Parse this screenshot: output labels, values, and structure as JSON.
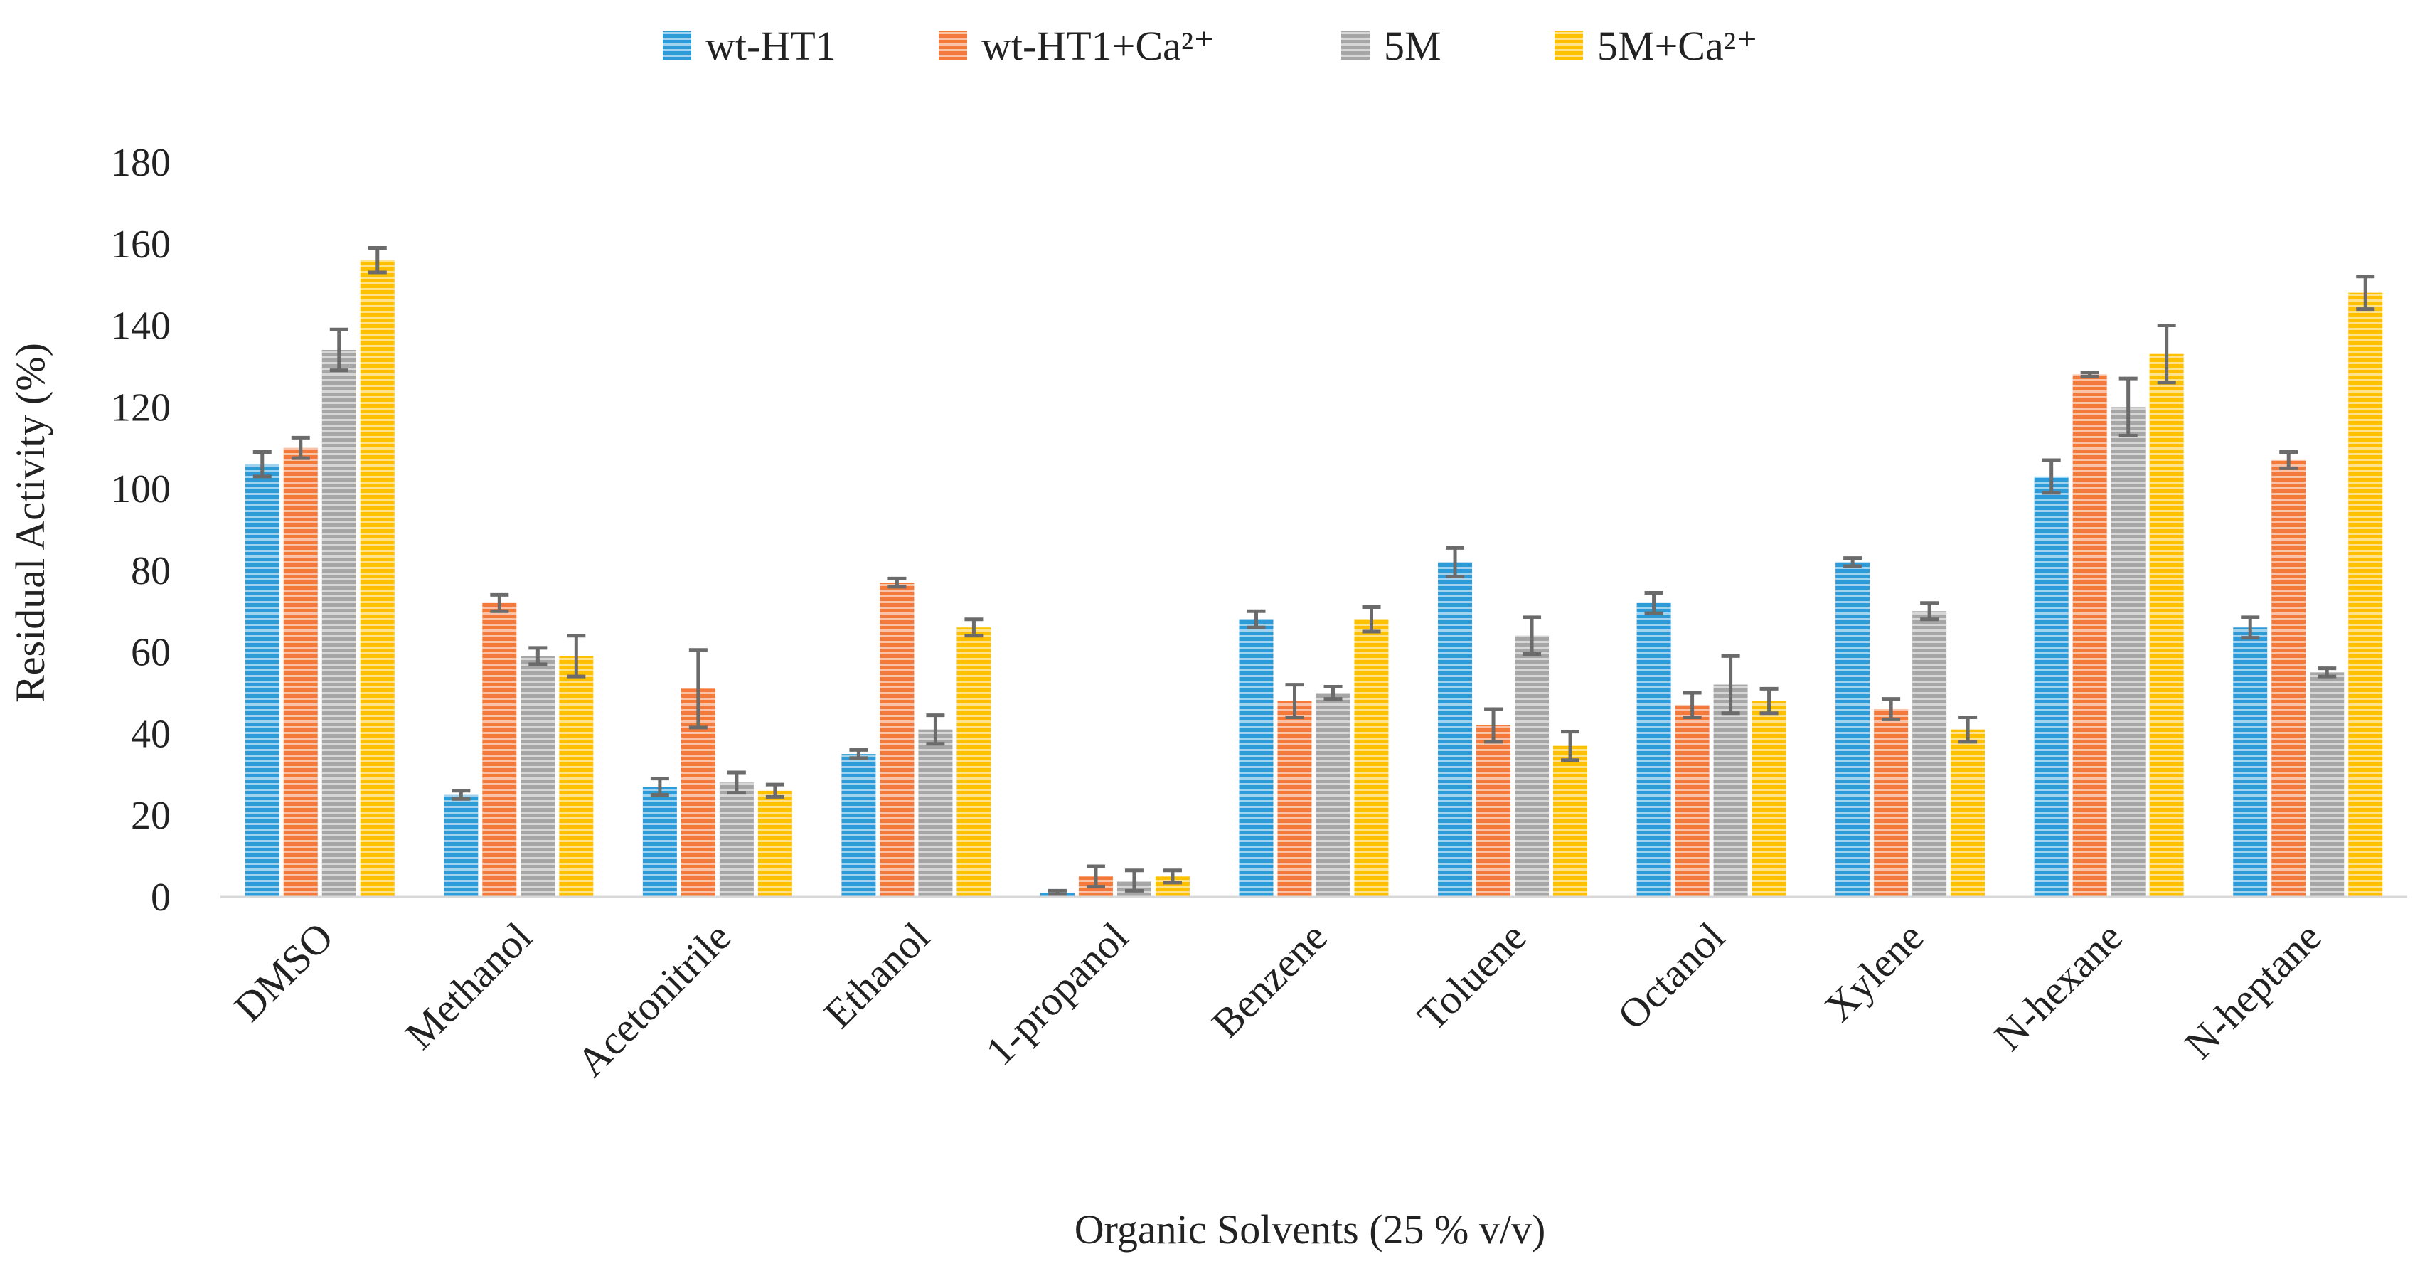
{
  "chart_data": {
    "type": "bar",
    "xlabel": "Organic Solvents (25 % v/v)",
    "ylabel": "Residual Activity (%)",
    "ylim": [
      0,
      180
    ],
    "yticks": [
      "0",
      "20",
      "40",
      "60",
      "80",
      "100",
      "120",
      "140",
      "160",
      "180"
    ],
    "grid": false,
    "legend_position": "top",
    "error_bars": true,
    "categories": [
      "DMSO",
      "Methanol",
      "Acetonitrile",
      "Ethanol",
      "1-propanol",
      "Benzene",
      "Toluene",
      "Octanol",
      "Xylene",
      "N-hexane",
      "N-heptane"
    ],
    "series": [
      {
        "name": "wt-HT1",
        "color": "#2e9bd9",
        "values": [
          106,
          25,
          27,
          35,
          1,
          68,
          82,
          72,
          82,
          103,
          66
        ],
        "errors": [
          3,
          1,
          2,
          1,
          0.5,
          2,
          3.5,
          2.5,
          1,
          4,
          2.5
        ]
      },
      {
        "name": "wt-HT1+Ca²⁺",
        "color": "#f47a3b",
        "values": [
          110,
          72,
          51,
          77,
          5,
          48,
          42,
          47,
          46,
          128,
          107
        ],
        "errors": [
          2.5,
          2,
          9.5,
          1,
          2.5,
          4,
          4,
          3,
          2.5,
          0.5,
          2
        ]
      },
      {
        "name": "5M",
        "color": "#a6a6a6",
        "values": [
          134,
          59,
          28,
          41,
          4,
          50,
          64,
          52,
          70,
          120,
          55
        ],
        "errors": [
          5,
          2,
          2.5,
          3.5,
          2.5,
          1.5,
          4.5,
          7,
          2,
          7,
          1
        ]
      },
      {
        "name": "5M+Ca²⁺",
        "color": "#ffc000",
        "values": [
          156,
          59,
          26,
          66,
          5,
          68,
          37,
          48,
          41,
          133,
          148
        ],
        "errors": [
          3,
          5,
          1.5,
          2,
          1.5,
          3,
          3.5,
          3,
          3,
          7,
          4
        ]
      }
    ]
  }
}
